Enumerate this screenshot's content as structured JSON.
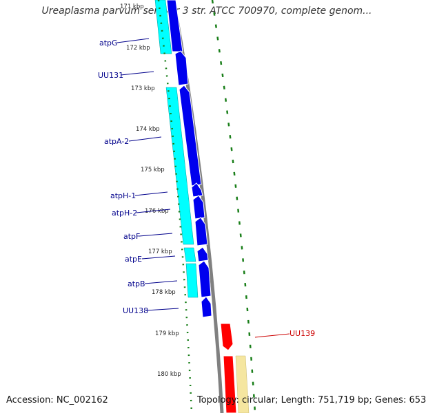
{
  "title": "Ureaplasma parvum serovar 3 str. ATCC 700970, complete genom...",
  "footer": {
    "accession": "Accession: NC_002162",
    "topology": "Topology: circular; Length: 751,719 bp; Genes: 653"
  },
  "ticks": [
    "171 kbp",
    "172 kbp",
    "173 kbp",
    "174 kbp",
    "175 kbp",
    "176 kbp",
    "177 kbp",
    "178 kbp",
    "179 kbp",
    "180 kbp"
  ],
  "genes": [
    {
      "name": "atpG",
      "color": "#00008b"
    },
    {
      "name": "UU131",
      "color": "#00008b"
    },
    {
      "name": "atpA-2",
      "color": "#00008b"
    },
    {
      "name": "atpH-1",
      "color": "#00008b"
    },
    {
      "name": "atpH-2",
      "color": "#00008b"
    },
    {
      "name": "atpF",
      "color": "#00008b"
    },
    {
      "name": "atpE",
      "color": "#00008b"
    },
    {
      "name": "atpB",
      "color": "#00008b"
    },
    {
      "name": "UU138",
      "color": "#00008b"
    },
    {
      "name": "UU139",
      "color": "#cc0000"
    }
  ],
  "colors": {
    "cds_forward": "#0000ee",
    "rna_forward": "#00ffff",
    "cds_reverse": "#ff0000",
    "rna_reverse": "#f5e6a0",
    "backbone": "#808080",
    "skew_dots": "#1a7f1a"
  }
}
